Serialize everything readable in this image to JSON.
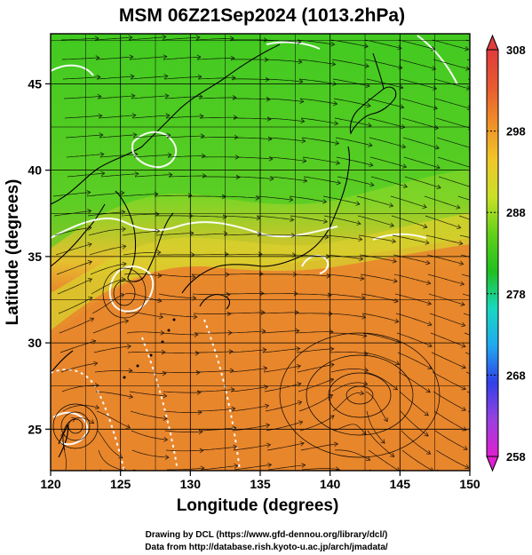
{
  "title": "MSM 06Z21Sep2024 (1013.2hPa)",
  "xlabel": "Longitude (degrees)",
  "ylabel": "Latitude  (degrees)",
  "x_ticks": [
    "120",
    "125",
    "130",
    "135",
    "140",
    "145",
    "150"
  ],
  "y_ticks": [
    "25",
    "30",
    "35",
    "40",
    "45"
  ],
  "colorbar": {
    "ticks": [
      "308",
      "298",
      "288",
      "278",
      "268",
      "258"
    ],
    "min": 258,
    "max": 308,
    "colors": [
      "#e020d0",
      "#9a40e0",
      "#3040e8",
      "#20a8f0",
      "#18d8c0",
      "#20c020",
      "#60d018",
      "#c8e028",
      "#f0c828",
      "#f09028",
      "#e85a30",
      "#e03c3c"
    ]
  },
  "footer": {
    "line1": "Drawing by DCL (https://www.gfd-dennou.org/library/dcl/)",
    "line2": "Data from http://database.rish.kyoto-u.ac.jp/arch/jmadata/"
  },
  "colors": {
    "cool_green": "#38c820",
    "mid_green": "#80d424",
    "yellow_green": "#c8dc30",
    "warm_orange": "#e8902c",
    "deep_orange": "#e4782a",
    "coast": "#000000",
    "contour": "#ffffff"
  }
}
